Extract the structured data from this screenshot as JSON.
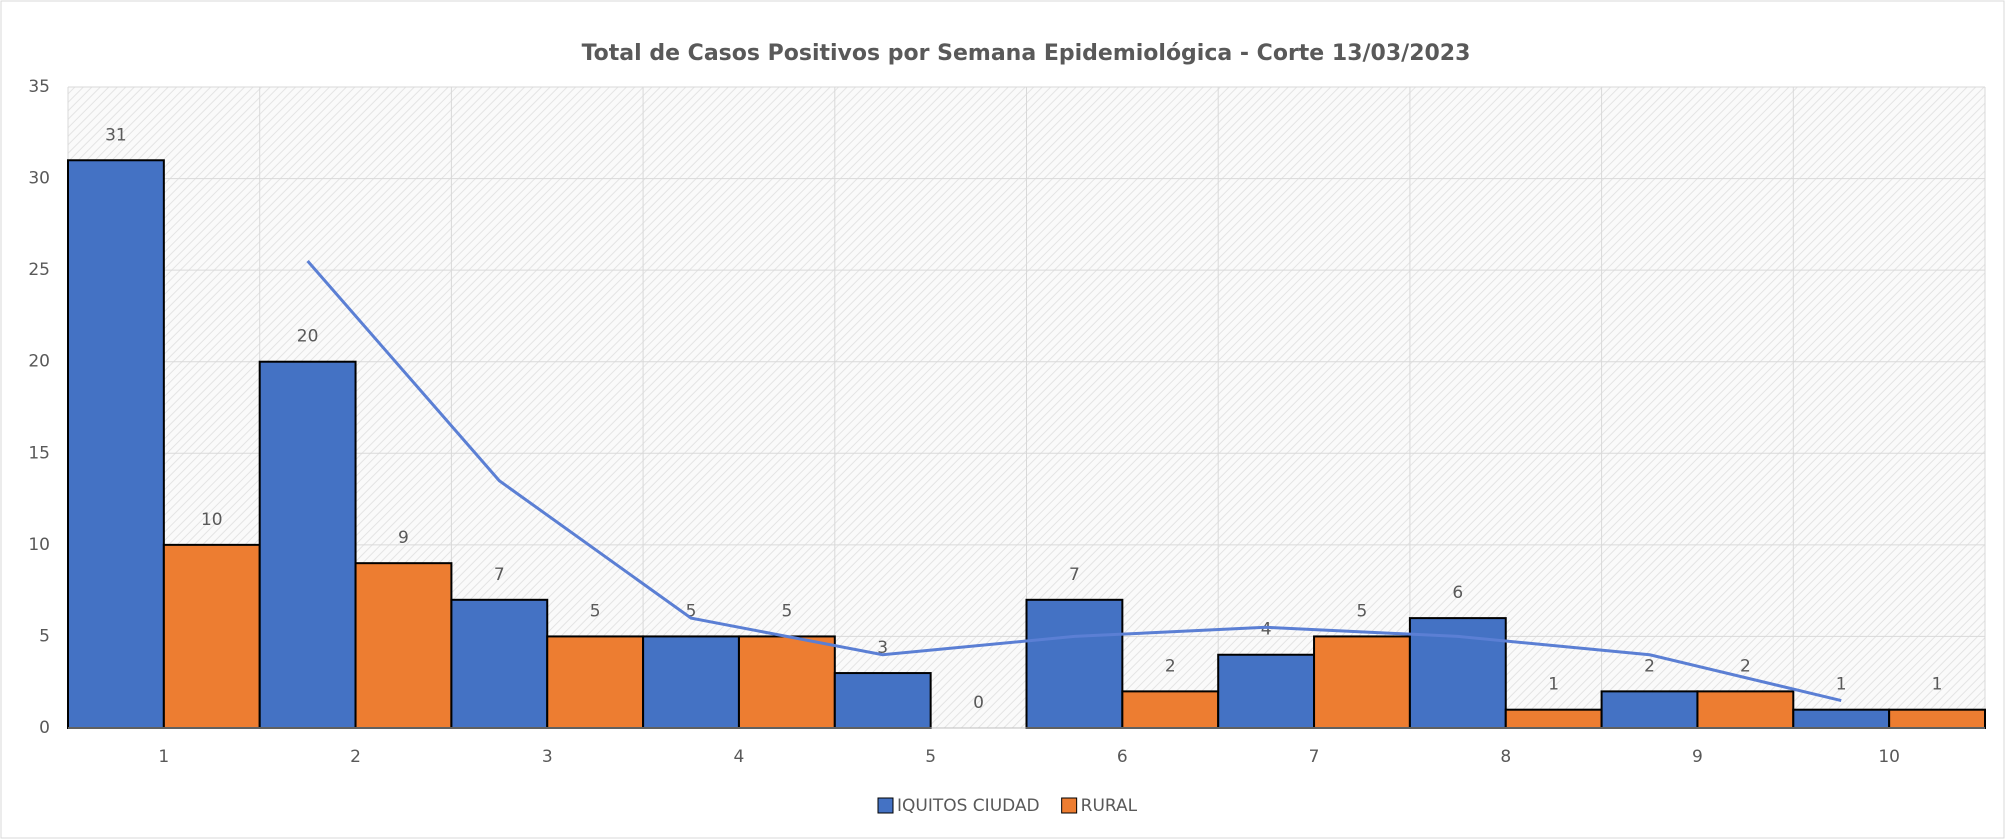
{
  "chart_data": {
    "type": "bar",
    "title": "Total de Casos Positivos por Semana Epidemiológica - Corte 13/03/2023",
    "categories": [
      "1",
      "2",
      "3",
      "4",
      "5",
      "6",
      "7",
      "8",
      "9",
      "10"
    ],
    "series": [
      {
        "name": "IQUITOS CIUDAD",
        "color": "#4472c4",
        "values": [
          31,
          20,
          7,
          5,
          3,
          7,
          4,
          6,
          2,
          1
        ]
      },
      {
        "name": "RURAL",
        "color": "#ed7d31",
        "values": [
          10,
          9,
          5,
          5,
          0,
          2,
          5,
          1,
          2,
          1
        ]
      }
    ],
    "trendline": {
      "color": "#5b7fd4",
      "values": [
        null,
        25.5,
        13.5,
        6,
        4,
        5,
        5.5,
        5,
        4,
        1.5
      ]
    },
    "ylim": [
      0,
      35
    ],
    "yticks": [
      0,
      5,
      10,
      15,
      20,
      25,
      30,
      35
    ],
    "grid": true,
    "legend": "bottom"
  }
}
